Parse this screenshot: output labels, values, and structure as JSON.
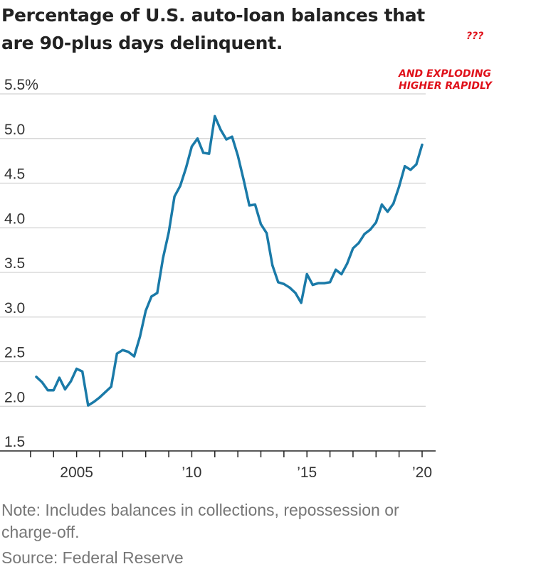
{
  "title": "Percentage of U.S. auto-loan balances that are 90-plus days delinquent.",
  "annotations": {
    "question": "???",
    "main_line1": "AND EXPLODING",
    "main_line2": "HIGHER RAPIDLY"
  },
  "note": "Note: Includes balances in collections, repossession or charge-off.",
  "source": "Source: Federal Reserve",
  "colors": {
    "line": "#1a7aa8",
    "grid": "#d2d2d2",
    "axis": "#222222",
    "annotation": "#e0121b"
  },
  "chart_data": {
    "type": "line",
    "title": "Percentage of U.S. auto-loan balances that are 90-plus days delinquent.",
    "xlabel": "",
    "ylabel": "",
    "xlim": [
      2003,
      2020.25
    ],
    "ylim": [
      1.5,
      5.5
    ],
    "grid": true,
    "y_ticks": [
      {
        "value": 1.5,
        "label": "1.5"
      },
      {
        "value": 2.0,
        "label": "2.0"
      },
      {
        "value": 2.5,
        "label": "2.5"
      },
      {
        "value": 3.0,
        "label": "3.0"
      },
      {
        "value": 3.5,
        "label": "3.5"
      },
      {
        "value": 4.0,
        "label": "4.0"
      },
      {
        "value": 4.5,
        "label": "4.5"
      },
      {
        "value": 5.0,
        "label": "5.0"
      },
      {
        "value": 5.5,
        "label": "5.5%"
      }
    ],
    "x_ticks": [
      2003,
      2004,
      2005,
      2006,
      2007,
      2008,
      2009,
      2010,
      2011,
      2012,
      2013,
      2014,
      2015,
      2016,
      2017,
      2018,
      2019,
      2020
    ],
    "x_tick_labels": [
      {
        "value": 2005,
        "label": "2005"
      },
      {
        "value": 2010,
        "label": "’10"
      },
      {
        "value": 2015,
        "label": "’15"
      },
      {
        "value": 2020,
        "label": "’20"
      }
    ],
    "series": [
      {
        "x": [
          2003.25,
          2003.5,
          2003.75,
          2004.0,
          2004.25,
          2004.5,
          2004.75,
          2005.0,
          2005.25,
          2005.5,
          2005.75,
          2006.0,
          2006.25,
          2006.5,
          2006.75,
          2007.0,
          2007.25,
          2007.5,
          2007.75,
          2008.0,
          2008.25,
          2008.5,
          2008.75,
          2009.0,
          2009.25,
          2009.5,
          2009.75,
          2010.0,
          2010.25,
          2010.5,
          2010.75,
          2011.0,
          2011.25,
          2011.5,
          2011.75,
          2012.0,
          2012.25,
          2012.5,
          2012.75,
          2013.0,
          2013.25,
          2013.5,
          2013.75,
          2014.0,
          2014.25,
          2014.5,
          2014.75,
          2015.0,
          2015.25,
          2015.5,
          2015.75,
          2016.0,
          2016.25,
          2016.5,
          2016.75,
          2017.0,
          2017.25,
          2017.5,
          2017.75,
          2018.0,
          2018.25,
          2018.5,
          2018.75,
          2019.0,
          2019.25,
          2019.5,
          2019.75,
          2020.0
        ],
        "y": [
          2.33,
          2.27,
          2.18,
          2.18,
          2.32,
          2.19,
          2.28,
          2.42,
          2.39,
          2.01,
          2.05,
          2.1,
          2.16,
          2.22,
          2.59,
          2.63,
          2.61,
          2.56,
          2.78,
          3.07,
          3.23,
          3.27,
          3.66,
          3.95,
          4.35,
          4.47,
          4.67,
          4.91,
          5.0,
          4.84,
          4.83,
          5.25,
          5.1,
          4.99,
          5.02,
          4.81,
          4.54,
          4.25,
          4.26,
          4.04,
          3.94,
          3.58,
          3.39,
          3.37,
          3.33,
          3.27,
          3.16,
          3.48,
          3.36,
          3.38,
          3.38,
          3.39,
          3.53,
          3.48,
          3.6,
          3.77,
          3.83,
          3.93,
          3.98,
          4.06,
          4.26,
          4.18,
          4.27,
          4.46,
          4.69,
          4.65,
          4.71,
          4.93
        ]
      }
    ]
  }
}
